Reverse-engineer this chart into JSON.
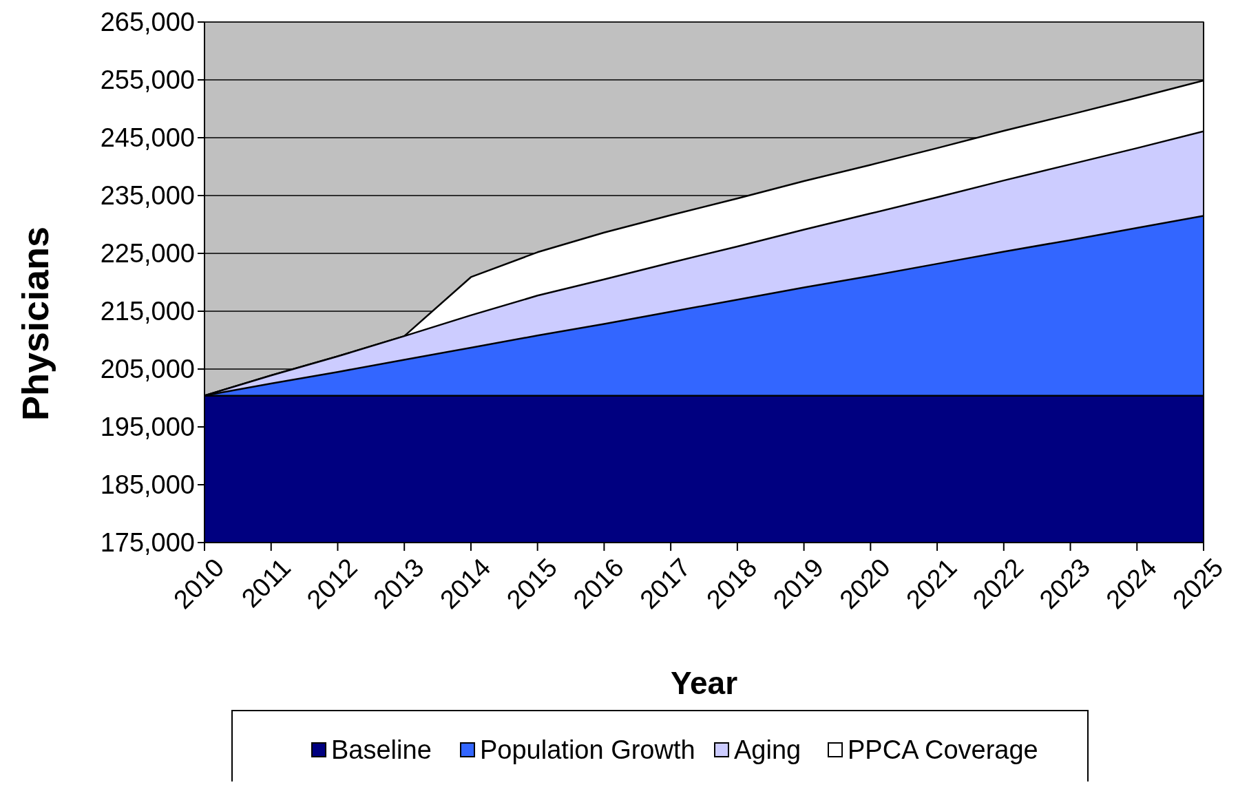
{
  "chart_data": {
    "type": "area",
    "xlabel": "Year",
    "ylabel": "Physicians",
    "x": [
      2010,
      2011,
      2012,
      2013,
      2014,
      2015,
      2016,
      2017,
      2018,
      2019,
      2020,
      2021,
      2022,
      2023,
      2024,
      2025
    ],
    "xlim": [
      2010,
      2025
    ],
    "xticks": [
      2010,
      2011,
      2012,
      2013,
      2014,
      2015,
      2016,
      2017,
      2018,
      2019,
      2020,
      2021,
      2022,
      2023,
      2024,
      2025
    ],
    "ylim": [
      175000,
      265000
    ],
    "yticks": [
      {
        "value": 175000,
        "label": "175,000"
      },
      {
        "value": 185000,
        "label": "185,000"
      },
      {
        "value": 195000,
        "label": "195,000"
      },
      {
        "value": 205000,
        "label": "205,000"
      },
      {
        "value": 215000,
        "label": "215,000"
      },
      {
        "value": 225000,
        "label": "225,000"
      },
      {
        "value": 235000,
        "label": "235,000"
      },
      {
        "value": 245000,
        "label": "245,000"
      },
      {
        "value": 255000,
        "label": "255,000"
      },
      {
        "value": 265000,
        "label": "265,000"
      }
    ],
    "grid": "y",
    "legend": "bottom",
    "series": [
      {
        "name": "Baseline",
        "color": "#000080",
        "values": [
          200400,
          200400,
          200400,
          200400,
          200400,
          200400,
          200400,
          200400,
          200400,
          200400,
          200400,
          200400,
          200400,
          200400,
          200400,
          200400
        ]
      },
      {
        "name": "Population Growth",
        "color": "#3366ff",
        "values": [
          200400,
          202500,
          204500,
          206600,
          208700,
          210800,
          212800,
          214900,
          217000,
          219100,
          221100,
          223200,
          225300,
          227300,
          229400,
          231500
        ]
      },
      {
        "name": "Aging",
        "color": "#ccccff",
        "values": [
          200400,
          203900,
          207200,
          210700,
          214300,
          217700,
          220500,
          223400,
          226200,
          229100,
          231900,
          234700,
          237600,
          240400,
          243200,
          246100
        ]
      },
      {
        "name": "PPCA Coverage",
        "color": "#ffffff",
        "values": [
          200400,
          203900,
          207200,
          210700,
          220900,
          225200,
          228600,
          231600,
          234500,
          237500,
          240300,
          243200,
          246200,
          249000,
          251900,
          254900
        ]
      }
    ]
  }
}
